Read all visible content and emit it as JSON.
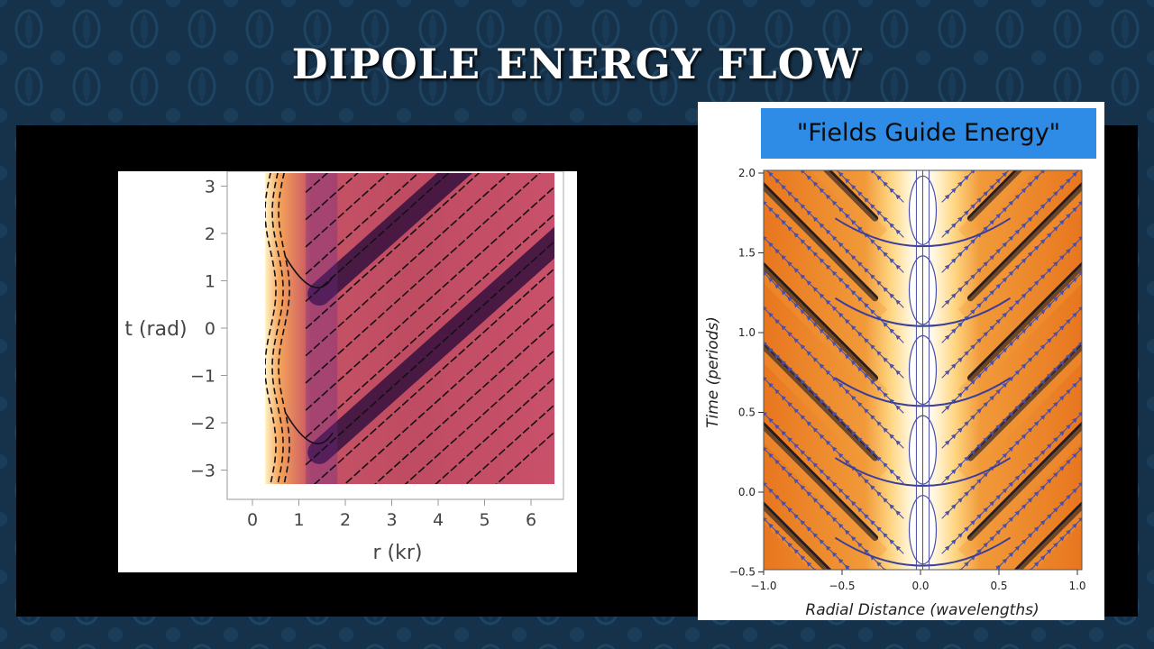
{
  "slide": {
    "title": "DIPOLE ENERGY FLOW",
    "colors": {
      "background": "#16324a",
      "band": "#000000",
      "title": "#ffffff",
      "banner": "#2e8be6"
    }
  },
  "chart_data": [
    {
      "type": "heatmap",
      "title": "",
      "xlabel": "r (kr)",
      "ylabel": "t (rad)",
      "xlim": [
        0,
        6.4
      ],
      "ylim": [
        -3.14,
        3.14
      ],
      "xticks": [
        "0",
        "1",
        "2",
        "3",
        "4",
        "5",
        "6"
      ],
      "yticks": [
        "3",
        "2",
        "1",
        "0",
        "−1",
        "−2",
        "−3"
      ],
      "colormap": [
        "#fff4c8",
        "#f29a55",
        "#c34f67",
        "#6a2a8a",
        "#1a0b2b"
      ],
      "overlay": "streamlines",
      "grid": false
    },
    {
      "type": "heatmap",
      "title": "\"Fields Guide Energy\"",
      "xlabel": "Radial Distance (wavelengths)",
      "ylabel": "Time (periods)",
      "xlim": [
        -1.0,
        1.0
      ],
      "ylim": [
        -0.5,
        2.0
      ],
      "xticks": [
        "−1.0",
        "−0.5",
        "0.0",
        "0.5",
        "1.0"
      ],
      "yticks": [
        "2.0",
        "1.5",
        "1.0",
        "0.5",
        "0.0",
        "−0.5"
      ],
      "colormap": [
        "#ffffff",
        "#ffe6a0",
        "#f7a53c",
        "#e8761f",
        "#13111d"
      ],
      "overlay": "streamlines",
      "grid": false
    }
  ]
}
